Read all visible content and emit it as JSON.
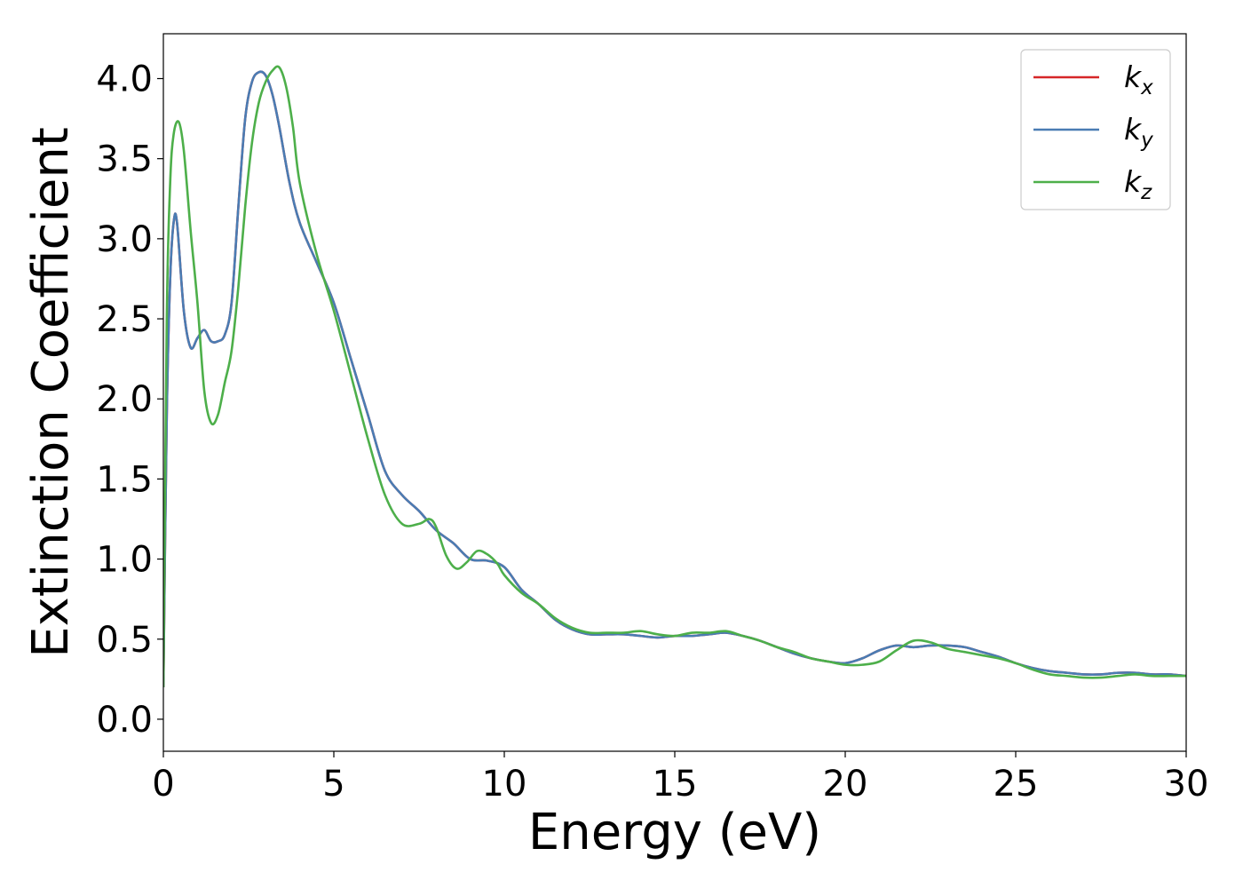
{
  "chart_data": {
    "type": "line",
    "title": "",
    "xlabel": "Energy (eV)",
    "ylabel": "Extinction Coefficient",
    "xlim": [
      0,
      30
    ],
    "ylim": [
      -0.2,
      4.28
    ],
    "xticks": [
      0,
      5,
      10,
      15,
      20,
      25,
      30
    ],
    "xtick_labels": [
      "0",
      "5",
      "10",
      "15",
      "20",
      "25",
      "30"
    ],
    "yticks": [
      0.0,
      0.5,
      1.0,
      1.5,
      2.0,
      2.5,
      3.0,
      3.5,
      4.0
    ],
    "ytick_labels": [
      "0.0",
      "0.5",
      "1.0",
      "1.5",
      "2.0",
      "2.5",
      "3.0",
      "3.5",
      "4.0"
    ],
    "grid": false,
    "legend_position": "top-right",
    "series": [
      {
        "name": "k",
        "subscript": "x",
        "color": "#d62728",
        "x": [
          0,
          0.1,
          0.2,
          0.3,
          0.4,
          0.6,
          0.8,
          1.0,
          1.2,
          1.4,
          1.6,
          1.8,
          2.0,
          2.2,
          2.4,
          2.6,
          2.8,
          3.0,
          3.2,
          3.4,
          3.7,
          4.0,
          4.5,
          5.0,
          5.5,
          6.0,
          6.5,
          7.0,
          7.5,
          8.0,
          8.5,
          9.0,
          9.5,
          10.0,
          10.5,
          11.0,
          11.5,
          12.0,
          12.5,
          13.0,
          13.5,
          14.0,
          14.5,
          15.0,
          15.5,
          16.0,
          16.5,
          17.0,
          17.5,
          18.0,
          18.5,
          19.0,
          19.5,
          20.0,
          20.5,
          21.0,
          21.5,
          22.0,
          22.5,
          23.0,
          23.5,
          24.0,
          24.5,
          25.0,
          25.5,
          26.0,
          26.5,
          27.0,
          27.5,
          28.0,
          28.5,
          29.0,
          29.5,
          30.0
        ],
        "y": [
          0.2,
          1.9,
          2.75,
          3.1,
          3.1,
          2.55,
          2.32,
          2.38,
          2.43,
          2.36,
          2.36,
          2.4,
          2.6,
          3.2,
          3.75,
          3.98,
          4.04,
          4.02,
          3.9,
          3.7,
          3.35,
          3.1,
          2.85,
          2.6,
          2.25,
          1.9,
          1.55,
          1.4,
          1.3,
          1.18,
          1.1,
          1.0,
          0.99,
          0.95,
          0.81,
          0.72,
          0.62,
          0.56,
          0.53,
          0.53,
          0.53,
          0.52,
          0.51,
          0.52,
          0.52,
          0.53,
          0.54,
          0.52,
          0.49,
          0.45,
          0.41,
          0.38,
          0.36,
          0.35,
          0.38,
          0.43,
          0.46,
          0.45,
          0.46,
          0.46,
          0.45,
          0.42,
          0.39,
          0.35,
          0.32,
          0.3,
          0.29,
          0.28,
          0.28,
          0.29,
          0.29,
          0.28,
          0.28,
          0.27
        ]
      },
      {
        "name": "k",
        "subscript": "y",
        "color": "#4a7cb3",
        "x": [
          0,
          0.1,
          0.2,
          0.3,
          0.4,
          0.6,
          0.8,
          1.0,
          1.2,
          1.4,
          1.6,
          1.8,
          2.0,
          2.2,
          2.4,
          2.6,
          2.8,
          3.0,
          3.2,
          3.4,
          3.7,
          4.0,
          4.5,
          5.0,
          5.5,
          6.0,
          6.5,
          7.0,
          7.5,
          8.0,
          8.5,
          9.0,
          9.5,
          10.0,
          10.5,
          11.0,
          11.5,
          12.0,
          12.5,
          13.0,
          13.5,
          14.0,
          14.5,
          15.0,
          15.5,
          16.0,
          16.5,
          17.0,
          17.5,
          18.0,
          18.5,
          19.0,
          19.5,
          20.0,
          20.5,
          21.0,
          21.5,
          22.0,
          22.5,
          23.0,
          23.5,
          24.0,
          24.5,
          25.0,
          25.5,
          26.0,
          26.5,
          27.0,
          27.5,
          28.0,
          28.5,
          29.0,
          29.5,
          30.0
        ],
        "y": [
          0.2,
          1.9,
          2.75,
          3.1,
          3.1,
          2.55,
          2.32,
          2.38,
          2.43,
          2.36,
          2.36,
          2.4,
          2.6,
          3.2,
          3.75,
          3.98,
          4.04,
          4.02,
          3.9,
          3.7,
          3.35,
          3.1,
          2.85,
          2.6,
          2.25,
          1.9,
          1.55,
          1.4,
          1.3,
          1.18,
          1.1,
          1.0,
          0.99,
          0.95,
          0.81,
          0.72,
          0.62,
          0.56,
          0.53,
          0.53,
          0.53,
          0.52,
          0.51,
          0.52,
          0.52,
          0.53,
          0.54,
          0.52,
          0.49,
          0.45,
          0.41,
          0.38,
          0.36,
          0.35,
          0.38,
          0.43,
          0.46,
          0.45,
          0.46,
          0.46,
          0.45,
          0.42,
          0.39,
          0.35,
          0.32,
          0.3,
          0.29,
          0.28,
          0.28,
          0.29,
          0.29,
          0.28,
          0.28,
          0.27
        ]
      },
      {
        "name": "k",
        "subscript": "z",
        "color": "#4daf4a",
        "x": [
          0,
          0.1,
          0.2,
          0.3,
          0.45,
          0.6,
          0.8,
          1.0,
          1.2,
          1.4,
          1.6,
          1.8,
          2.0,
          2.2,
          2.4,
          2.6,
          2.8,
          3.0,
          3.2,
          3.4,
          3.6,
          3.8,
          4.0,
          4.5,
          5.0,
          5.5,
          6.0,
          6.5,
          7.0,
          7.5,
          7.8,
          8.0,
          8.3,
          8.6,
          8.9,
          9.2,
          9.5,
          9.8,
          10.0,
          10.5,
          11.0,
          11.5,
          12.0,
          12.5,
          13.0,
          13.5,
          14.0,
          14.5,
          15.0,
          15.5,
          16.0,
          16.5,
          17.0,
          17.5,
          18.0,
          18.5,
          19.0,
          19.5,
          20.0,
          20.5,
          21.0,
          21.5,
          22.0,
          22.5,
          23.0,
          23.5,
          24.0,
          24.5,
          25.0,
          25.5,
          26.0,
          26.5,
          27.0,
          27.5,
          28.0,
          28.5,
          29.0,
          29.5,
          30.0
        ],
        "y": [
          0.2,
          2.5,
          3.35,
          3.65,
          3.73,
          3.55,
          3.05,
          2.6,
          2.05,
          1.85,
          1.9,
          2.1,
          2.3,
          2.7,
          3.2,
          3.6,
          3.85,
          3.98,
          4.05,
          4.07,
          3.95,
          3.7,
          3.35,
          2.9,
          2.55,
          2.15,
          1.75,
          1.4,
          1.22,
          1.22,
          1.25,
          1.2,
          1.02,
          0.94,
          0.98,
          1.05,
          1.03,
          0.97,
          0.9,
          0.79,
          0.72,
          0.63,
          0.57,
          0.54,
          0.54,
          0.54,
          0.55,
          0.53,
          0.52,
          0.54,
          0.54,
          0.55,
          0.52,
          0.49,
          0.45,
          0.42,
          0.38,
          0.36,
          0.34,
          0.34,
          0.36,
          0.43,
          0.49,
          0.48,
          0.44,
          0.42,
          0.4,
          0.38,
          0.35,
          0.31,
          0.28,
          0.27,
          0.26,
          0.26,
          0.27,
          0.28,
          0.27,
          0.27,
          0.27
        ]
      }
    ]
  }
}
